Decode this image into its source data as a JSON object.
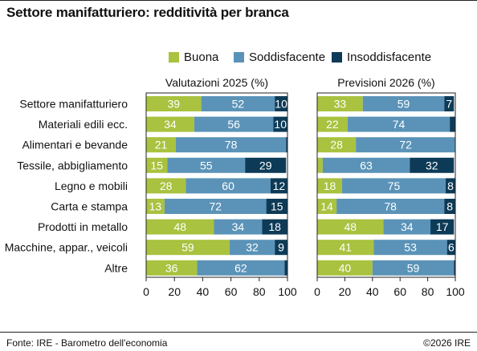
{
  "title": "Settore manifatturiero: redditività per branca",
  "source": "Fonte: IRE - Barometro dell'economia",
  "copyright": "©2026 IRE",
  "chart_data": {
    "type": "bar",
    "orientation": "horizontal",
    "stacked": true,
    "categories": [
      "Settore manifatturiero",
      "Materiali edili ecc.",
      "Alimentari e bevande",
      "Tessile, abbigliamento",
      "Legno e mobili",
      "Carta e stampa",
      "Prodotti in metallo",
      "Macchine, appar., veicoli",
      "Altre"
    ],
    "legend": {
      "position": "top",
      "entries": [
        {
          "name": "Buona",
          "color": "#a9c23f"
        },
        {
          "name": "Soddisfacente",
          "color": "#5b93b8"
        },
        {
          "name": "Insoddisfacente",
          "color": "#0d3b57"
        }
      ]
    },
    "xlim": [
      0,
      100
    ],
    "xticks": [
      0,
      20,
      40,
      60,
      80,
      100
    ],
    "panels": [
      {
        "title": "Valutazioni 2025 (%)",
        "series": [
          {
            "name": "Buona",
            "color": "#a9c23f",
            "values": [
              39,
              34,
              21,
              15,
              28,
              13,
              48,
              59,
              36
            ]
          },
          {
            "name": "Soddisfacente",
            "color": "#5b93b8",
            "values": [
              52,
              56,
              78,
              55,
              60,
              72,
              34,
              32,
              62
            ]
          },
          {
            "name": "Insoddisfacente",
            "color": "#0d3b57",
            "values": [
              10,
              10,
              1,
              29,
              12,
              15,
              18,
              9,
              2
            ]
          }
        ],
        "labels": [
          [
            "39",
            "52",
            "10"
          ],
          [
            "34",
            "56",
            "10"
          ],
          [
            "21",
            "78",
            ""
          ],
          [
            "15",
            "55",
            "29"
          ],
          [
            "28",
            "60",
            "12"
          ],
          [
            "13",
            "72",
            "15"
          ],
          [
            "48",
            "34",
            "18"
          ],
          [
            "59",
            "32",
            "9"
          ],
          [
            "36",
            "62",
            ""
          ]
        ]
      },
      {
        "title": "Previsioni 2026 (%)",
        "series": [
          {
            "name": "Buona",
            "color": "#a9c23f",
            "values": [
              33,
              22,
              28,
              4,
              18,
              14,
              48,
              41,
              40
            ]
          },
          {
            "name": "Soddisfacente",
            "color": "#5b93b8",
            "values": [
              59,
              74,
              72,
              63,
              75,
              78,
              34,
              53,
              59
            ]
          },
          {
            "name": "Insoddisfacente",
            "color": "#0d3b57",
            "values": [
              7,
              4,
              0,
              32,
              8,
              8,
              17,
              6,
              1
            ]
          }
        ],
        "labels": [
          [
            "33",
            "59",
            "7"
          ],
          [
            "22",
            "74",
            ""
          ],
          [
            "28",
            "72",
            ""
          ],
          [
            "",
            "63",
            "32"
          ],
          [
            "18",
            "75",
            "8"
          ],
          [
            "14",
            "78",
            "8"
          ],
          [
            "48",
            "34",
            "17"
          ],
          [
            "41",
            "53",
            "6"
          ],
          [
            "40",
            "59",
            ""
          ]
        ]
      }
    ]
  }
}
